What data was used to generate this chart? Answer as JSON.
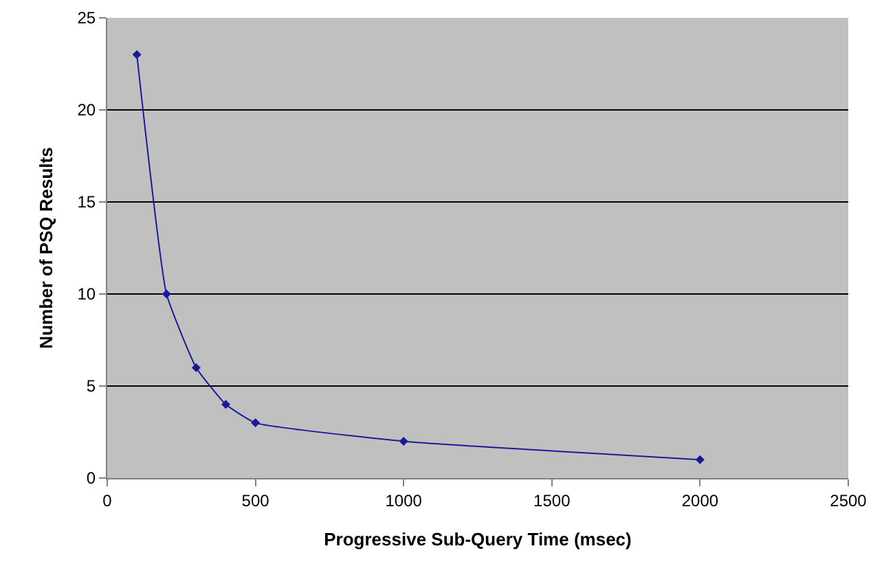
{
  "chart_data": {
    "type": "line",
    "xlabel": "Progressive Sub-Query Time (msec)",
    "ylabel": "Number of PSQ Results",
    "x": [
      100,
      200,
      300,
      400,
      500,
      1000,
      2000
    ],
    "series": [
      {
        "color": "#1a1a99",
        "values": [
          23,
          10,
          6,
          4,
          3,
          2,
          1
        ]
      }
    ],
    "xlim": [
      0,
      2500
    ],
    "xticks": [
      0,
      500,
      1000,
      1500,
      2000,
      2500
    ],
    "ylim": [
      0,
      25
    ],
    "yticks": [
      0,
      5,
      10,
      15,
      20,
      25
    ],
    "grid": "y",
    "marker": "diamond",
    "line_style": "solid"
  }
}
